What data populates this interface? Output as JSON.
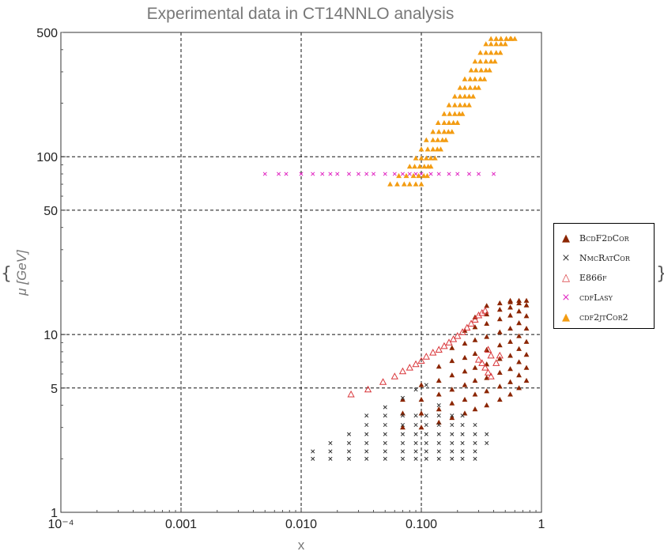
{
  "chart_data": {
    "type": "scatter",
    "title": "Experimental data in CT14NNLO analysis",
    "xlabel": "x",
    "ylabel": "μ [GeV]",
    "x_scale": "log",
    "y_scale": "log",
    "xlim": [
      0.0001,
      1
    ],
    "ylim": [
      1,
      500
    ],
    "x_ticks": [
      0.0001,
      0.001,
      0.01,
      0.1,
      1
    ],
    "x_tick_labels": [
      "10⁻⁴",
      "0.001",
      "0.010",
      "0.100",
      "1"
    ],
    "y_ticks": [
      1,
      5,
      10,
      50,
      100,
      500
    ],
    "y_tick_labels": [
      "1",
      "5",
      "10",
      "50",
      "100",
      "500"
    ],
    "grid": "dashed at major ticks",
    "legend_position": "right",
    "legend_braces": [
      "{",
      "}"
    ],
    "series": [
      {
        "name": "BcdF2dCor",
        "marker": "filled-triangle",
        "color": "#8b2500",
        "x": [
          0.07,
          0.07,
          0.07,
          0.1,
          0.1,
          0.1,
          0.1,
          0.14,
          0.14,
          0.14,
          0.14,
          0.14,
          0.18,
          0.18,
          0.18,
          0.18,
          0.18,
          0.18,
          0.23,
          0.23,
          0.23,
          0.23,
          0.23,
          0.23,
          0.23,
          0.28,
          0.28,
          0.28,
          0.28,
          0.28,
          0.28,
          0.28,
          0.28,
          0.35,
          0.35,
          0.35,
          0.35,
          0.35,
          0.35,
          0.35,
          0.35,
          0.35,
          0.45,
          0.45,
          0.45,
          0.45,
          0.45,
          0.45,
          0.45,
          0.45,
          0.45,
          0.55,
          0.55,
          0.55,
          0.55,
          0.55,
          0.55,
          0.55,
          0.55,
          0.55,
          0.55,
          0.65,
          0.65,
          0.65,
          0.65,
          0.65,
          0.65,
          0.65,
          0.65,
          0.65,
          0.75,
          0.75,
          0.75,
          0.75,
          0.75,
          0.75,
          0.75,
          0.75
        ],
        "y": [
          3.0,
          3.6,
          4.3,
          3.0,
          3.6,
          4.3,
          5.2,
          3.2,
          3.8,
          4.6,
          5.5,
          6.6,
          3.4,
          4.1,
          4.9,
          5.9,
          7.1,
          8.4,
          3.6,
          4.3,
          5.2,
          6.2,
          7.4,
          8.9,
          10.5,
          3.8,
          4.6,
          5.5,
          6.5,
          7.8,
          9.3,
          11.0,
          12.5,
          4.0,
          4.8,
          5.7,
          6.8,
          8.2,
          9.7,
          11.5,
          13.0,
          14.5,
          4.3,
          5.1,
          6.1,
          7.3,
          8.7,
          10.3,
          12.2,
          13.8,
          15.0,
          4.6,
          5.4,
          6.4,
          7.6,
          9.1,
          10.8,
          12.8,
          14.2,
          15.2,
          15.5,
          5.0,
          5.9,
          7.0,
          8.3,
          9.8,
          11.6,
          13.5,
          15.0,
          15.5,
          5.5,
          6.5,
          7.7,
          9.1,
          10.8,
          12.7,
          14.6,
          15.5
        ]
      },
      {
        "name": "NmcRatCor",
        "marker": "cross",
        "color": "#333333",
        "x": [
          0.0125,
          0.0125,
          0.0175,
          0.0175,
          0.0175,
          0.025,
          0.025,
          0.025,
          0.025,
          0.035,
          0.035,
          0.035,
          0.035,
          0.035,
          0.035,
          0.05,
          0.05,
          0.05,
          0.05,
          0.05,
          0.05,
          0.05,
          0.07,
          0.07,
          0.07,
          0.07,
          0.07,
          0.07,
          0.07,
          0.09,
          0.09,
          0.09,
          0.09,
          0.09,
          0.09,
          0.09,
          0.11,
          0.11,
          0.11,
          0.11,
          0.11,
          0.11,
          0.11,
          0.14,
          0.14,
          0.14,
          0.14,
          0.14,
          0.14,
          0.14,
          0.18,
          0.18,
          0.18,
          0.18,
          0.18,
          0.18,
          0.22,
          0.22,
          0.22,
          0.22,
          0.22,
          0.22,
          0.28,
          0.28,
          0.28,
          0.28,
          0.28,
          0.35,
          0.35
        ],
        "y": [
          2.0,
          2.2,
          2.0,
          2.2,
          2.45,
          2.0,
          2.2,
          2.45,
          2.75,
          2.0,
          2.2,
          2.45,
          2.75,
          3.1,
          3.5,
          2.0,
          2.2,
          2.45,
          2.75,
          3.1,
          3.5,
          3.9,
          2.0,
          2.2,
          2.45,
          2.75,
          3.1,
          3.5,
          4.4,
          2.0,
          2.2,
          2.45,
          2.75,
          3.1,
          3.5,
          4.9,
          2.0,
          2.2,
          2.45,
          2.75,
          3.1,
          3.5,
          5.2,
          2.0,
          2.2,
          2.45,
          2.75,
          3.1,
          3.5,
          4.0,
          2.0,
          2.2,
          2.45,
          2.75,
          3.1,
          3.5,
          2.0,
          2.2,
          2.45,
          2.75,
          3.1,
          3.5,
          2.0,
          2.2,
          2.45,
          2.75,
          3.1,
          2.45,
          2.75
        ]
      },
      {
        "name": "E866f",
        "marker": "open-triangle",
        "color": "#d9363a",
        "x": [
          0.026,
          0.036,
          0.048,
          0.06,
          0.07,
          0.08,
          0.09,
          0.1,
          0.11,
          0.125,
          0.14,
          0.155,
          0.17,
          0.185,
          0.2,
          0.22,
          0.24,
          0.26,
          0.28,
          0.3,
          0.32,
          0.34,
          0.36,
          0.38,
          0.3,
          0.32,
          0.34,
          0.36,
          0.38,
          0.42,
          0.45
        ],
        "y": [
          4.6,
          4.9,
          5.4,
          5.8,
          6.2,
          6.5,
          6.8,
          7.1,
          7.5,
          7.9,
          8.2,
          8.6,
          9.0,
          9.4,
          9.8,
          10.3,
          10.9,
          11.5,
          12.1,
          12.8,
          13.2,
          13.6,
          8.2,
          7.6,
          7.2,
          6.9,
          6.5,
          6.1,
          5.8,
          6.9,
          7.6
        ]
      },
      {
        "name": "cdfLasy",
        "marker": "cross",
        "color": "#e020c0",
        "x": [
          0.005,
          0.0065,
          0.0075,
          0.01,
          0.0125,
          0.015,
          0.0175,
          0.02,
          0.025,
          0.03,
          0.035,
          0.04,
          0.05,
          0.06,
          0.07,
          0.08,
          0.09,
          0.1,
          0.12,
          0.14,
          0.17,
          0.2,
          0.25,
          0.3,
          0.4
        ],
        "y": [
          80,
          80,
          80,
          80,
          80,
          80,
          80,
          80,
          80,
          80,
          80,
          80,
          80,
          80,
          80,
          80,
          80,
          80,
          80,
          80,
          80,
          80,
          80,
          80,
          80
        ]
      },
      {
        "name": "cdf2jtCor2",
        "marker": "filled-triangle",
        "color": "#f39c12",
        "x": [
          0.055,
          0.063,
          0.072,
          0.08,
          0.09,
          0.1,
          0.065,
          0.075,
          0.086,
          0.095,
          0.105,
          0.112,
          0.08,
          0.088,
          0.097,
          0.106,
          0.114,
          0.12,
          0.09,
          0.1,
          0.11,
          0.12,
          0.13,
          0.1,
          0.113,
          0.125,
          0.136,
          0.145,
          0.11,
          0.125,
          0.137,
          0.15,
          0.16,
          0.125,
          0.14,
          0.155,
          0.168,
          0.18,
          0.138,
          0.155,
          0.17,
          0.185,
          0.2,
          0.155,
          0.172,
          0.19,
          0.207,
          0.22,
          0.17,
          0.19,
          0.21,
          0.23,
          0.25,
          0.19,
          0.21,
          0.23,
          0.25,
          0.27,
          0.21,
          0.23,
          0.255,
          0.28,
          0.3,
          0.23,
          0.255,
          0.28,
          0.31,
          0.335,
          0.26,
          0.285,
          0.315,
          0.345,
          0.37,
          0.28,
          0.31,
          0.345,
          0.38,
          0.41,
          0.31,
          0.345,
          0.38,
          0.42,
          0.455,
          0.345,
          0.38,
          0.42,
          0.46,
          0.5,
          0.38,
          0.42,
          0.46,
          0.51,
          0.55,
          0.42,
          0.46,
          0.51,
          0.56,
          0.6
        ],
        "y": [
          70,
          70,
          70,
          70,
          70,
          70,
          78,
          78,
          78,
          78,
          78,
          78,
          88,
          88,
          88,
          88,
          88,
          88,
          98,
          98,
          98,
          98,
          98,
          110,
          110,
          110,
          110,
          110,
          124,
          124,
          124,
          124,
          124,
          138,
          138,
          138,
          138,
          138,
          155,
          155,
          155,
          155,
          155,
          174,
          174,
          174,
          174,
          174,
          195,
          195,
          195,
          195,
          195,
          218,
          218,
          218,
          218,
          218,
          244,
          244,
          244,
          244,
          244,
          273,
          273,
          273,
          273,
          273,
          306,
          306,
          306,
          306,
          306,
          343,
          343,
          343,
          343,
          343,
          384,
          384,
          384,
          384,
          384,
          430,
          430,
          430,
          430,
          430,
          460,
          460,
          460,
          460,
          460,
          460,
          460,
          460,
          460,
          460
        ]
      }
    ]
  }
}
